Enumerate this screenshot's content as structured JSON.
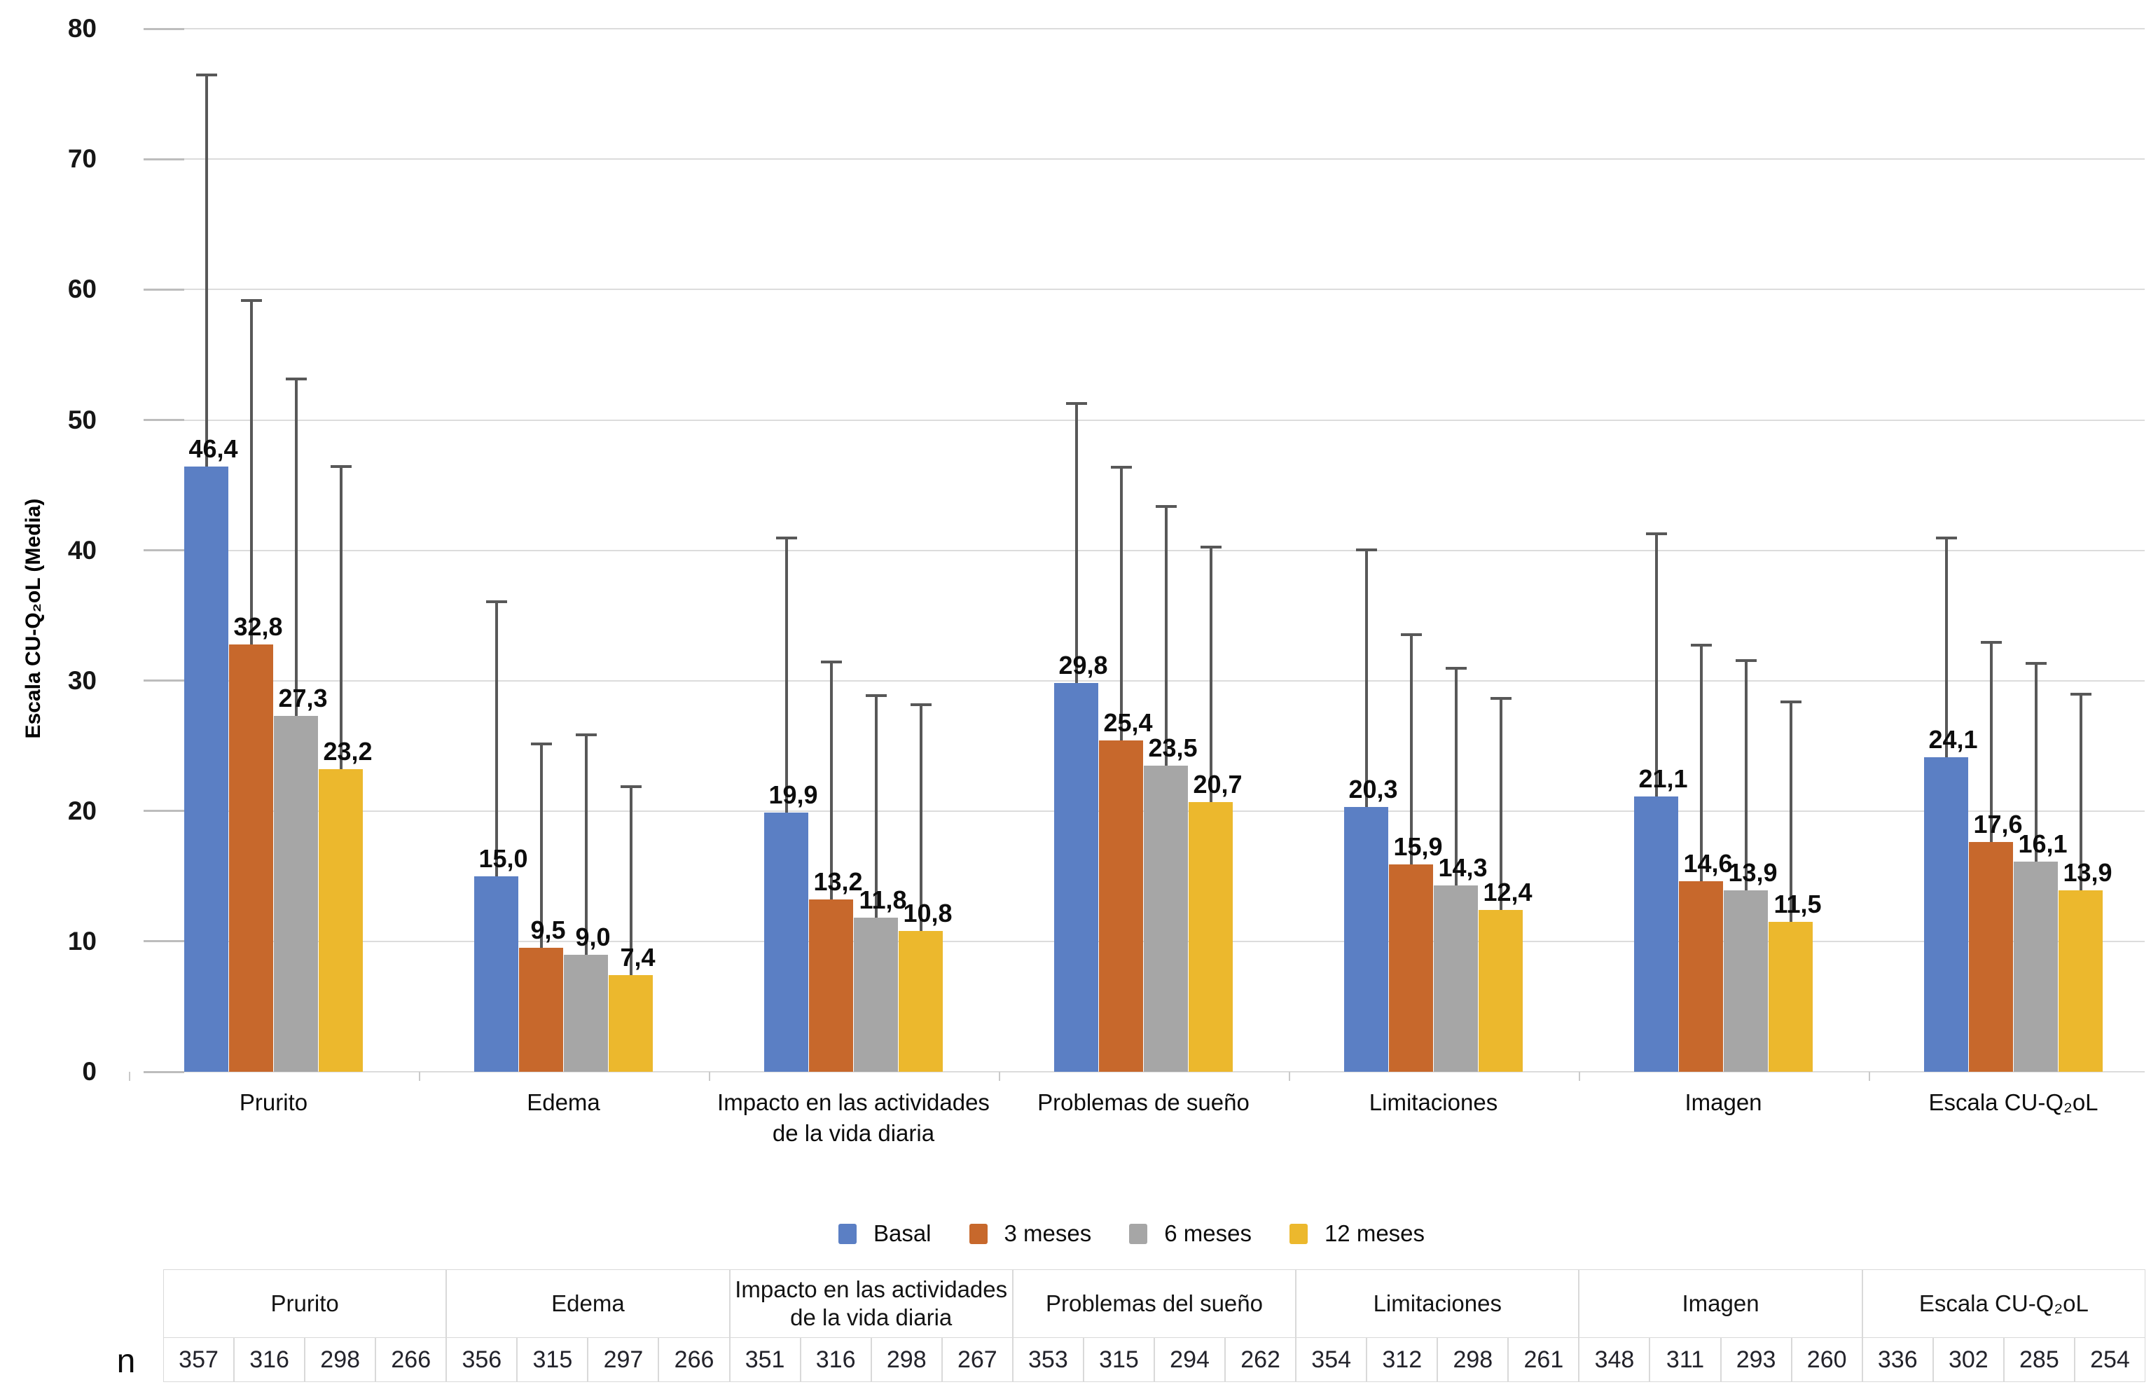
{
  "chart": {
    "y_title": "Escala CU-Q₂oL (Media)",
    "y_ticks": [
      0,
      10,
      20,
      30,
      40,
      50,
      60,
      70,
      80
    ]
  },
  "chart_data": {
    "type": "bar",
    "title": "",
    "xlabel": "",
    "ylabel": "Escala CU-Q₂oL (Media)",
    "ylim": [
      0,
      80
    ],
    "grid": true,
    "legend_position": "bottom",
    "decimal_separator": ",",
    "error_bars": "upper-only",
    "categories": [
      "Prurito",
      "Edema",
      "Impacto en las actividades\nde la vida diaria",
      "Problemas de sueño",
      "Limitaciones",
      "Imagen",
      "Escala CU-Q₂oL"
    ],
    "series": [
      {
        "name": "Basal",
        "color": "#5b7fc4",
        "values": [
          46.4,
          15.0,
          19.9,
          29.8,
          20.3,
          21.1,
          24.1
        ],
        "error_top": [
          76.5,
          36.1,
          41.0,
          51.3,
          40.1,
          41.3,
          41.0
        ]
      },
      {
        "name": "3 meses",
        "color": "#c7682c",
        "values": [
          32.8,
          9.5,
          13.2,
          25.4,
          15.9,
          14.6,
          17.6
        ],
        "error_top": [
          59.2,
          25.2,
          31.5,
          46.4,
          33.6,
          32.8,
          33.0
        ]
      },
      {
        "name": "6 meses",
        "color": "#a6a6a6",
        "values": [
          27.3,
          9.0,
          11.8,
          23.5,
          14.3,
          13.9,
          16.1
        ],
        "error_top": [
          53.2,
          25.9,
          28.9,
          43.4,
          31.0,
          31.6,
          31.4
        ]
      },
      {
        "name": "12 meses",
        "color": "#ecb82d",
        "values": [
          23.2,
          7.4,
          10.8,
          20.7,
          12.4,
          11.5,
          13.9
        ],
        "error_top": [
          46.5,
          21.9,
          28.2,
          40.3,
          28.7,
          28.4,
          29.0
        ]
      }
    ]
  },
  "legend": {
    "items": [
      {
        "label": "Basal",
        "color": "#5b7fc4"
      },
      {
        "label": "3 meses",
        "color": "#c7682c"
      },
      {
        "label": "6 meses",
        "color": "#a6a6a6"
      },
      {
        "label": "12 meses",
        "color": "#ecb82d"
      }
    ]
  },
  "table": {
    "row_label": "n",
    "groups": [
      {
        "label": "Prurito",
        "values": [
          357,
          316,
          298,
          266
        ]
      },
      {
        "label": "Edema",
        "values": [
          356,
          315,
          297,
          266
        ]
      },
      {
        "label": "Impacto en las actividades\nde la vida diaria",
        "values": [
          351,
          316,
          298,
          267
        ]
      },
      {
        "label": "Problemas del sueño",
        "values": [
          353,
          315,
          294,
          262
        ]
      },
      {
        "label": "Limitaciones",
        "values": [
          354,
          312,
          298,
          261
        ]
      },
      {
        "label": "Imagen",
        "values": [
          348,
          311,
          293,
          260
        ]
      },
      {
        "label": "Escala CU-Q₂oL",
        "values": [
          336,
          302,
          285,
          254
        ]
      }
    ]
  }
}
